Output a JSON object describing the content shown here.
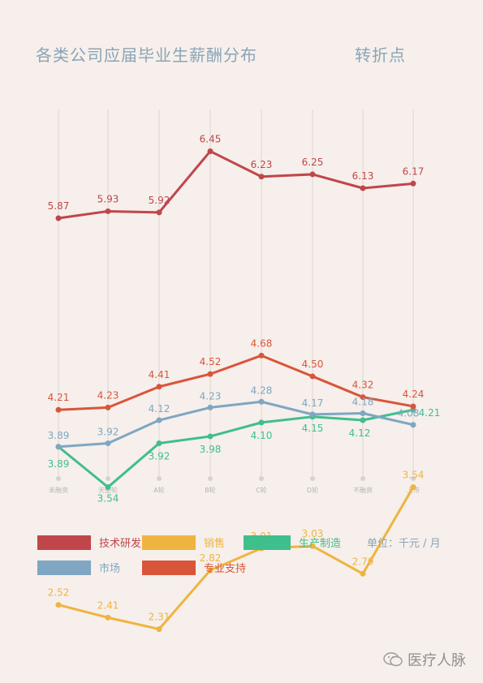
{
  "title": "各类公司应届毕业生薪酬分布",
  "subtitle": "转折点",
  "unit": "单位：千元 / 月",
  "watermark": {
    "text": "医疗人脉",
    "icon": "wechat-icon"
  },
  "chart_data": {
    "type": "line",
    "title": "各类公司应届毕业生薪酬分布",
    "categories": [
      "未融资",
      "天使轮",
      "A轮",
      "B轮",
      "C轮",
      "D轮",
      "不融资",
      "上市"
    ],
    "ylim": [
      0,
      7
    ],
    "grid": "vertical",
    "legend_position": "bottom",
    "series": [
      {
        "name": "技术研发",
        "color": "#c0464b",
        "values": [
          5.87,
          5.93,
          5.92,
          6.45,
          6.23,
          6.25,
          6.13,
          6.17
        ]
      },
      {
        "name": "销售",
        "color": "#efb43f",
        "values": [
          2.52,
          2.41,
          2.31,
          2.82,
          3.01,
          3.03,
          2.79,
          3.54
        ]
      },
      {
        "name": "生产制造",
        "color": "#3fbf8b",
        "values": [
          3.89,
          3.54,
          3.92,
          3.98,
          4.1,
          4.15,
          4.12,
          4.21
        ]
      },
      {
        "name": "市场",
        "color": "#7fa6c2",
        "values": [
          3.89,
          3.92,
          4.12,
          4.23,
          4.28,
          4.17,
          4.18,
          4.08
        ]
      },
      {
        "name": "专业支持",
        "color": "#d9553a",
        "values": [
          4.21,
          4.23,
          4.41,
          4.52,
          4.68,
          4.5,
          4.32,
          4.24
        ]
      }
    ]
  }
}
